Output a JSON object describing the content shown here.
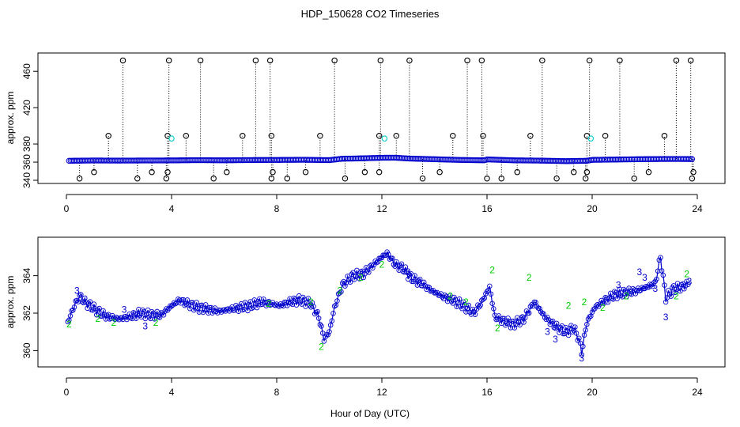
{
  "figure": {
    "title": "HDP_150628  CO2 Timeseries",
    "shared_xlabel": "Hour of Day (UTC)"
  },
  "colors": {
    "raw_points": "#000000",
    "flagged_points": "#00cccc",
    "main_series": "#0000cc",
    "series_2": "#00cc00",
    "series_3": "#0000cc"
  },
  "chart_data": [
    {
      "type": "scatter",
      "ylabel": "approx. ppm",
      "xlim": [
        0,
        24
      ],
      "ylim": [
        340,
        475
      ],
      "xticks": [
        0,
        4,
        8,
        12,
        16,
        20,
        24
      ],
      "yticks": [
        340,
        360,
        380,
        420,
        460
      ],
      "grid": false,
      "main_series": {
        "x": [
          0.1,
          1.0,
          2.0,
          3.0,
          4.0,
          5.0,
          6.0,
          7.0,
          8.0,
          9.0,
          10.0,
          10.5,
          11.0,
          12.0,
          12.5,
          13.0,
          14.0,
          15.0,
          15.9,
          16.0,
          17.0,
          18.0,
          19.0,
          19.8,
          20.0,
          21.0,
          22.0,
          23.0,
          23.8
        ],
        "y": [
          361.5,
          361.8,
          361.7,
          361.8,
          361.9,
          362.2,
          362.0,
          362.3,
          362.4,
          362.6,
          362.2,
          363.8,
          364.0,
          364.8,
          364.9,
          364.0,
          363.2,
          362.4,
          362.0,
          363.0,
          362.0,
          361.7,
          361.1,
          361.5,
          362.5,
          362.9,
          363.3,
          363.5,
          363.4
        ]
      },
      "spikes_high": {
        "x": [
          2.15,
          3.9,
          5.1,
          7.2,
          7.75,
          10.2,
          11.95,
          13.05,
          15.25,
          15.8,
          18.1,
          19.9,
          21.05,
          23.2,
          23.75
        ],
        "y": [
          472,
          472,
          472,
          472,
          472,
          472,
          472,
          472,
          472,
          472,
          472,
          472,
          472,
          472,
          472
        ]
      },
      "spikes_mid": {
        "x": [
          1.6,
          3.85,
          4.55,
          6.7,
          7.8,
          9.65,
          11.9,
          12.55,
          14.7,
          15.85,
          17.65,
          19.8,
          20.5,
          22.75
        ],
        "y": [
          389,
          389,
          389,
          389,
          389,
          389,
          389,
          389,
          389,
          389,
          389,
          389,
          389,
          389
        ]
      },
      "spikes_low": {
        "x": [
          0.5,
          1.05,
          2.7,
          3.25,
          3.8,
          3.85,
          5.6,
          6.1,
          7.8,
          7.85,
          8.4,
          9.1,
          10.6,
          11.35,
          11.9,
          13.55,
          14.2,
          16.0,
          16.55,
          17.15,
          18.65,
          19.3,
          19.75,
          19.8,
          21.6,
          22.15,
          23.8,
          23.85
        ],
        "y": [
          342,
          349,
          342,
          349,
          342,
          349,
          342,
          349,
          342,
          349,
          342,
          349,
          342,
          349,
          349,
          342,
          349,
          342,
          342,
          349,
          342,
          349,
          342,
          349,
          342,
          349,
          342,
          349
        ]
      },
      "flagged": {
        "x": [
          4.0,
          12.1,
          19.95
        ],
        "y": [
          386,
          386,
          386
        ]
      }
    },
    {
      "type": "line",
      "ylabel": "approx. ppm",
      "xlim": [
        0,
        24
      ],
      "ylim": [
        359.3,
        365.8
      ],
      "xticks": [
        0,
        4,
        8,
        12,
        16,
        20,
        24
      ],
      "yticks": [
        360,
        362,
        364
      ],
      "grid": false,
      "series": [
        {
          "x": [
            0.05,
            0.3,
            0.5,
            0.7,
            1.0,
            1.3,
            1.6,
            2.0,
            2.4,
            2.8,
            3.2,
            3.6,
            4.0,
            4.3,
            4.6,
            5.0,
            5.4,
            5.8,
            6.2,
            6.6,
            7.0,
            7.4,
            7.8,
            8.1,
            8.5,
            8.9,
            9.3,
            9.6,
            9.8,
            10.0,
            10.2,
            10.5,
            10.9,
            11.3,
            11.7,
            12.0,
            12.2,
            12.5,
            12.8,
            13.1,
            13.5,
            13.9,
            14.3,
            14.7,
            15.1,
            15.5,
            15.8,
            16.1,
            16.3,
            16.6,
            17.0,
            17.4,
            17.8,
            18.2,
            18.6,
            19.0,
            19.3,
            19.5,
            19.6,
            19.8,
            20.1,
            20.5,
            20.9,
            21.3,
            21.7,
            22.1,
            22.4,
            22.6,
            22.8,
            23.1,
            23.4,
            23.7
          ],
          "values": [
            361.5,
            362.4,
            362.9,
            362.6,
            362.3,
            362.0,
            361.8,
            361.7,
            361.8,
            362.0,
            361.9,
            361.9,
            362.4,
            362.7,
            362.5,
            362.3,
            362.2,
            362.1,
            362.2,
            362.3,
            362.4,
            362.6,
            362.5,
            362.4,
            362.6,
            362.7,
            362.5,
            361.8,
            360.6,
            361.0,
            362.3,
            363.5,
            364.0,
            364.1,
            364.6,
            365.0,
            365.2,
            364.6,
            364.4,
            363.9,
            363.6,
            363.2,
            362.9,
            362.7,
            362.4,
            362.0,
            362.6,
            363.4,
            361.8,
            361.6,
            361.4,
            361.7,
            362.6,
            361.8,
            361.3,
            361.0,
            361.2,
            360.6,
            359.9,
            361.5,
            362.3,
            362.7,
            363.0,
            363.1,
            363.2,
            363.4,
            363.6,
            365.0,
            362.8,
            363.3,
            363.4,
            363.6
          ]
        }
      ],
      "digit_labels": {
        "x": [
          0.1,
          0.4,
          1.2,
          1.8,
          2.2,
          3.0,
          3.4,
          7.7,
          9.3,
          9.7,
          10.4,
          11.2,
          12.0,
          13.0,
          14.6,
          15.2,
          16.2,
          16.4,
          17.6,
          18.3,
          18.6,
          19.1,
          19.6,
          19.7,
          20.4,
          21.0,
          21.3,
          21.8,
          22.0,
          22.4,
          22.8,
          23.2,
          23.6,
          23.7
        ],
        "y": [
          361.4,
          363.2,
          361.7,
          361.5,
          362.2,
          361.3,
          361.5,
          362.5,
          362.6,
          360.2,
          363.2,
          363.9,
          364.6,
          364.2,
          362.9,
          362.6,
          364.3,
          361.2,
          363.9,
          361.0,
          360.6,
          362.4,
          359.6,
          362.6,
          362.3,
          363.5,
          362.9,
          364.2,
          363.9,
          363.3,
          361.8,
          362.9,
          364.1,
          363.7
        ],
        "text": [
          "2",
          "3",
          "2",
          "2",
          "3",
          "3",
          "2",
          "2",
          "2",
          "2",
          "2",
          "2",
          "2",
          "3",
          "2",
          "2",
          "2",
          "2",
          "2",
          "3",
          "3",
          "2",
          "3",
          "2",
          "2",
          "3",
          "2",
          "3",
          "3",
          "3",
          "3",
          "2",
          "2",
          "3"
        ],
        "series_of": [
          "2",
          "3",
          "2",
          "2",
          "3",
          "3",
          "2",
          "2",
          "2",
          "2",
          "2",
          "2",
          "2",
          "3",
          "2",
          "2",
          "2",
          "2",
          "2",
          "3",
          "3",
          "2",
          "3",
          "2",
          "2",
          "3",
          "2",
          "3",
          "3",
          "3",
          "3",
          "2",
          "2",
          "3"
        ]
      }
    }
  ]
}
